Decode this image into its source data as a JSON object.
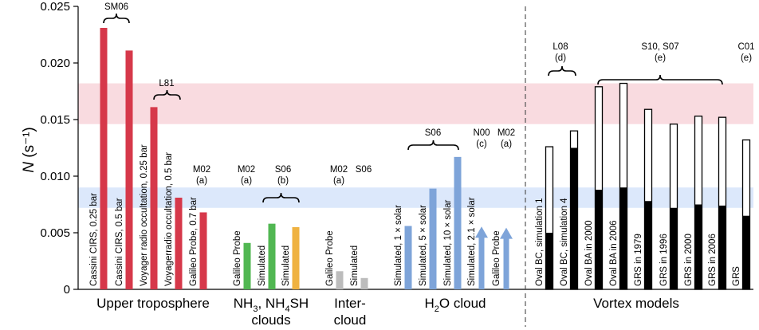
{
  "chart_data": {
    "type": "bar",
    "ylabel": "N (s⁻¹)",
    "ylim": [
      0,
      0.025
    ],
    "yticks": [
      "0",
      "0.005",
      "0.010",
      "0.015",
      "0.020",
      "0.025"
    ],
    "bands": [
      {
        "range": [
          0.0146,
          0.0182
        ],
        "color": "#f9dbe0"
      },
      {
        "range": [
          0.0072,
          0.009
        ],
        "color": "#dce8fb"
      }
    ],
    "colors": {
      "red": "#d6384a",
      "green": "#51b752",
      "orange": "#efb241",
      "gray": "#bcbcbc",
      "blue": "#7ea4d9"
    },
    "groups": [
      {
        "label": "Upper troposphere"
      },
      {
        "label_parts": [
          "NH",
          "3",
          ", NH",
          "4",
          "SH"
        ],
        "label2": "clouds"
      },
      {
        "label": "Inter-",
        "label2": "cloud"
      },
      {
        "label_parts": [
          "H",
          "2",
          "O cloud"
        ]
      },
      {
        "label": "Vortex models"
      }
    ],
    "bars": [
      {
        "label": "Cassini CIRS, 0.25 bar",
        "value": 0.0231,
        "color": "red"
      },
      {
        "label": "Cassini CIRS, 0.5 bar",
        "value": 0.0211,
        "color": "red"
      },
      {
        "label": "Voyager radio occultation, 0.25 bar",
        "value": 0.0161,
        "color": "red"
      },
      {
        "label": "Voyagerradio occultation, 0.5 bar",
        "value": 0.0081,
        "color": "red"
      },
      {
        "label": "Galileo Probe, 0.7 bar",
        "value": 0.0068,
        "color": "red"
      },
      {
        "label": "Galileo Probe",
        "value": 0.0041,
        "color": "green"
      },
      {
        "label": "Simulated",
        "value": 0.0058,
        "color": "green"
      },
      {
        "label": "Simulated",
        "value": 0.0055,
        "color": "orange"
      },
      {
        "label": "Galileo Probe",
        "value": 0.0016,
        "color": "gray"
      },
      {
        "label": "Simulated",
        "value": 0.001,
        "color": "gray"
      },
      {
        "label": "Simulated, 1 × solar",
        "value": 0.0056,
        "color": "blue"
      },
      {
        "label": "Simulated, 5 × solar",
        "value": 0.0089,
        "color": "blue"
      },
      {
        "label": "Simulated, 10 × solar",
        "value": 0.0117,
        "color": "blue"
      },
      {
        "label": "Simulated, 2.1 × solar",
        "value": 0.0047,
        "color": "blue",
        "arrow": true
      },
      {
        "label": "Galileo Probe",
        "value": 0.0046,
        "color": "blue",
        "arrow": true
      },
      {
        "label": "Oval BC, simulation 1",
        "low": 0.005,
        "high": 0.0126
      },
      {
        "label": "Oval BC, simulation 4",
        "low": 0.0125,
        "high": 0.014
      },
      {
        "label": "Oval BA in 2000",
        "low": 0.0088,
        "high": 0.0179
      },
      {
        "label": "Oval BA in 2006",
        "low": 0.009,
        "high": 0.0182
      },
      {
        "label": "GRS in 1979",
        "low": 0.0078,
        "high": 0.0159
      },
      {
        "label": "GRS in 1996",
        "low": 0.0072,
        "high": 0.0146
      },
      {
        "label": "GRS in 2000",
        "low": 0.0075,
        "high": 0.0153
      },
      {
        "label": "GRS in 2006",
        "low": 0.0074,
        "high": 0.0152
      },
      {
        "label": "GRS",
        "low": 0.0065,
        "high": 0.0132
      }
    ],
    "annotations": [
      {
        "lines": [
          "SM06"
        ],
        "brace": true
      },
      {
        "lines": [
          "L81"
        ],
        "brace": true
      },
      {
        "lines": [
          "M02",
          "(a)"
        ]
      },
      {
        "lines": [
          "M02",
          "(a)"
        ]
      },
      {
        "lines": [
          "S06",
          "(b)"
        ],
        "brace": true
      },
      {
        "lines": [
          "M02",
          "(a)"
        ]
      },
      {
        "lines": [
          "S06"
        ]
      },
      {
        "lines": [
          "S06"
        ],
        "brace": true
      },
      {
        "lines": [
          "N00",
          "(c)"
        ]
      },
      {
        "lines": [
          "M02",
          "(a)"
        ]
      },
      {
        "lines": [
          "L08",
          "(d)"
        ],
        "brace": true
      },
      {
        "lines": [
          "S10, S07",
          "(e)"
        ],
        "brace": true
      },
      {
        "lines": [
          "C01",
          "(e)"
        ]
      }
    ]
  }
}
